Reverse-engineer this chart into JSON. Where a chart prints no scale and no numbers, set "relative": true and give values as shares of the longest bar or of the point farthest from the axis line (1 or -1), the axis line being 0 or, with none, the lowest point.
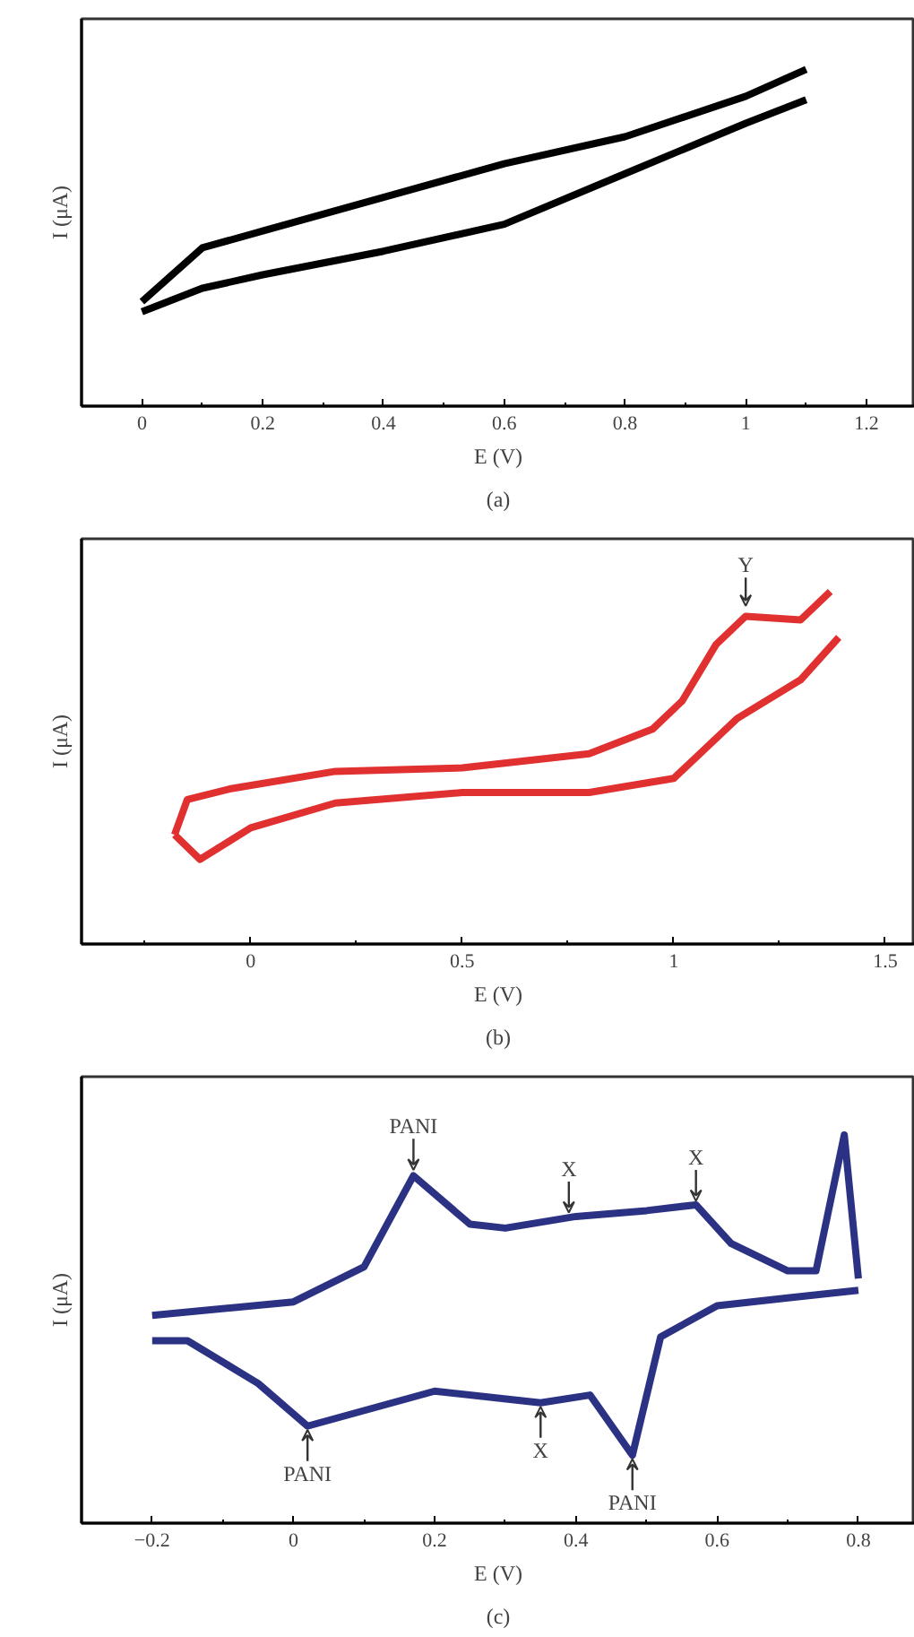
{
  "chart_data": [
    {
      "type": "line",
      "title": "(a)",
      "xlabel": "E (V)",
      "ylabel": "I (μA)",
      "relative": true,
      "xlim": [
        -0.1,
        1.28
      ],
      "xticks": [
        0,
        0.2,
        0.4,
        0.6,
        0.8,
        1,
        1.2,
        {
          "value": 0.1,
          "label": null
        },
        {
          "value": 0.3,
          "label": null
        },
        {
          "value": 0.5,
          "label": null
        },
        {
          "value": 0.7,
          "label": null
        },
        {
          "value": 0.9,
          "label": null
        },
        {
          "value": 1.1,
          "label": null
        }
      ],
      "tick_labels": "x",
      "grid": false,
      "line_style": "solid",
      "series": [
        {
          "color": "#000000",
          "x": [
            0,
            0.1,
            0.2,
            0.4,
            0.6,
            0.8,
            1.0,
            1.1
          ],
          "values": [
            0.31,
            0.47,
            0.52,
            0.62,
            0.72,
            0.8,
            0.92,
            1
          ]
        },
        {
          "color": "#000000",
          "x": [
            0.0,
            0.1,
            0.2,
            0.4,
            0.6,
            0.8,
            1.0,
            1.1
          ],
          "values": [
            0.28,
            0.35,
            0.39,
            0.46,
            0.54,
            0.69,
            0.84,
            0.91
          ]
        }
      ]
    },
    {
      "type": "line",
      "title": "(b)",
      "xlabel": "E (V)",
      "ylabel": "I (μA)",
      "relative": true,
      "xlim": [
        -0.4,
        1.57
      ],
      "xticks": [
        0,
        0.5,
        1,
        1.5,
        {
          "value": -0.25,
          "label": null
        },
        {
          "value": 0.25,
          "label": null
        },
        {
          "value": 0.75,
          "label": null
        },
        {
          "value": 1.25,
          "label": null
        }
      ],
      "tick_labels": "x",
      "grid": false,
      "line_style": "solid",
      "annotations": [
        {
          "text": "Y",
          "x": 1.17,
          "y": 0.95
        }
      ],
      "series": [
        {
          "color": "#e03030",
          "x": [
            -0.18,
            -0.15,
            -0.05,
            0.2,
            0.5,
            0.8,
            0.95,
            1.02,
            1.1,
            1.17,
            1.3,
            1.37
          ],
          "values": [
            0.31,
            0.41,
            0.44,
            0.49,
            0.5,
            0.54,
            0.61,
            0.69,
            0.85,
            0.93,
            0.92,
            1
          ]
        },
        {
          "color": "#e03030",
          "x": [
            -0.18,
            -0.12,
            0.0,
            0.2,
            0.5,
            0.8,
            1.0,
            1.15,
            1.3,
            1.39
          ],
          "values": [
            0.31,
            0.24,
            0.33,
            0.4,
            0.43,
            0.43,
            0.47,
            0.64,
            0.75,
            0.87
          ]
        }
      ]
    },
    {
      "type": "line",
      "title": "(c)",
      "xlabel": "E (V)",
      "ylabel": "I (μA)",
      "relative": true,
      "xlim": [
        -0.3,
        0.88
      ],
      "xticks": [
        {
          "value": -0.2,
          "label": "−0.2"
        },
        0,
        0.2,
        0.4,
        0.6,
        0.8,
        {
          "value": -0.1,
          "label": null
        },
        {
          "value": 0.1,
          "label": null
        },
        {
          "value": 0.3,
          "label": null
        },
        {
          "value": 0.5,
          "label": null
        },
        {
          "value": 0.7,
          "label": null
        }
      ],
      "tick_labels": "x",
      "grid": false,
      "line_style": "solid",
      "annotations": [
        {
          "text": "PANI",
          "x": 0.17,
          "y": 0.9
        },
        {
          "text": "X",
          "x": 0.39,
          "y": 0.79
        },
        {
          "text": "X",
          "x": 0.57,
          "y": 0.82
        },
        {
          "text": "PANI",
          "x": 0.02,
          "y": 0.25
        },
        {
          "text": "X",
          "x": 0.35,
          "y": 0.31
        },
        {
          "text": "PANI",
          "x": 0.48,
          "y": 0.175
        }
      ],
      "series": [
        {
          "color": "#2b3284",
          "x": [
            -0.2,
            0.0,
            0.1,
            0.17,
            0.25,
            0.3,
            0.4,
            0.5,
            0.57,
            0.62,
            0.7,
            0.74,
            0.78,
            0.8
          ],
          "values": [
            0.535,
            0.57,
            0.66,
            0.895,
            0.77,
            0.76,
            0.79,
            0.805,
            0.82,
            0.72,
            0.65,
            0.65,
            1.0,
            0.63
          ]
        },
        {
          "color": "#2b3284",
          "x": [
            -0.2,
            -0.15,
            -0.05,
            0.02,
            0.2,
            0.35,
            0.42,
            0.48,
            0.52,
            0.6,
            0.7,
            0.8
          ],
          "values": [
            0.47,
            0.47,
            0.36,
            0.25,
            0.34,
            0.31,
            0.33,
            0.175,
            0.48,
            0.56,
            0.58,
            0.6
          ]
        }
      ]
    }
  ]
}
